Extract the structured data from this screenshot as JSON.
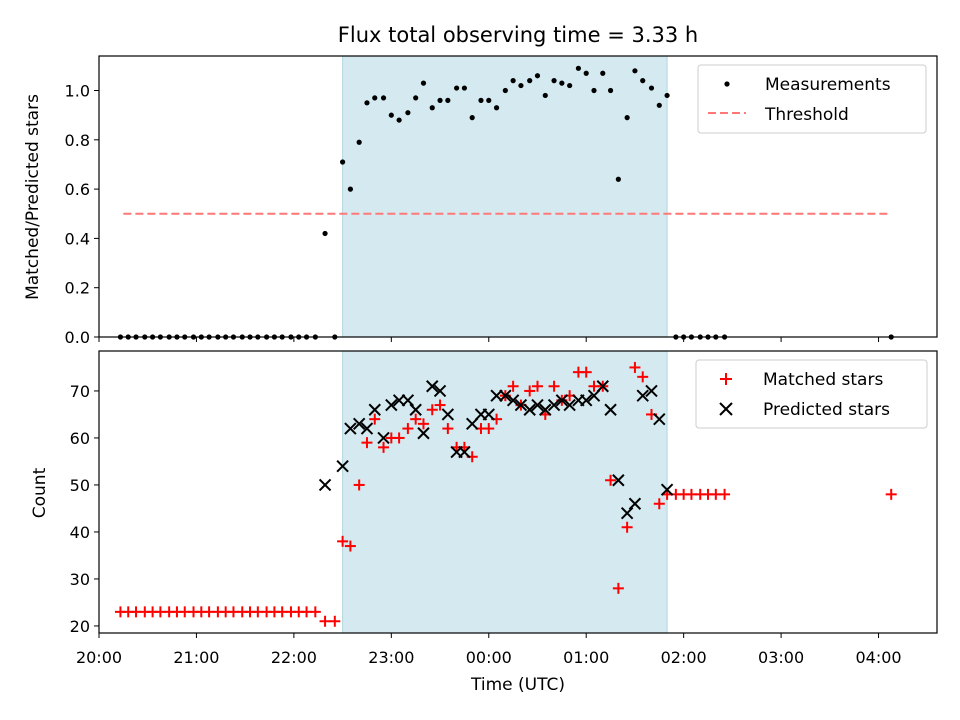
{
  "chart_data": [
    {
      "type": "scatter",
      "title": "Flux total observing time = 3.33 h",
      "ylabel": "Matched/Predicted stars",
      "xlabel": "",
      "xlim": [
        20.0,
        28.6
      ],
      "ylim": [
        0.0,
        1.14
      ],
      "yticks": [
        0.0,
        0.2,
        0.4,
        0.6,
        0.8,
        1.0
      ],
      "ytick_labels": [
        "0.0",
        "0.2",
        "0.4",
        "0.6",
        "0.8",
        "1.0"
      ],
      "x_unit": "hours from 20:00 UTC (values > 24 are after midnight)",
      "shaded_region": {
        "x0": 22.5,
        "x1": 25.83,
        "color": "#d4eaf0"
      },
      "threshold": {
        "value": 0.5,
        "x0": 20.25,
        "x1": 28.13,
        "color": "#ff7777",
        "name": "Threshold"
      },
      "legend_position": "upper right",
      "series": [
        {
          "name": "Measurements",
          "color": "#000000",
          "marker": "dot",
          "x": [
            20.22,
            20.3,
            20.38,
            20.47,
            20.55,
            20.63,
            20.72,
            20.8,
            20.88,
            20.97,
            21.05,
            21.13,
            21.22,
            21.3,
            21.38,
            21.47,
            21.55,
            21.63,
            21.72,
            21.8,
            21.88,
            21.97,
            22.05,
            22.13,
            22.22,
            22.32,
            22.42,
            22.5,
            22.58,
            22.67,
            22.75,
            22.83,
            22.92,
            23.0,
            23.08,
            23.17,
            23.25,
            23.33,
            23.42,
            23.5,
            23.58,
            23.67,
            23.75,
            23.83,
            23.92,
            24.0,
            24.08,
            24.17,
            24.25,
            24.33,
            24.42,
            24.5,
            24.58,
            24.67,
            24.75,
            24.83,
            24.92,
            25.0,
            25.08,
            25.17,
            25.25,
            25.33,
            25.42,
            25.5,
            25.58,
            25.67,
            25.75,
            25.83,
            25.92,
            26.0,
            26.08,
            26.17,
            26.25,
            26.33,
            26.42,
            28.13
          ],
          "y": [
            0,
            0,
            0,
            0,
            0,
            0,
            0,
            0,
            0,
            0,
            0,
            0,
            0,
            0,
            0,
            0,
            0,
            0,
            0,
            0,
            0,
            0,
            0,
            0,
            0,
            0.42,
            0,
            0.71,
            0.6,
            0.79,
            0.95,
            0.97,
            0.97,
            0.9,
            0.88,
            0.91,
            0.97,
            1.03,
            0.93,
            0.96,
            0.96,
            1.01,
            1.01,
            0.89,
            0.96,
            0.96,
            0.93,
            1.0,
            1.04,
            1.02,
            1.04,
            1.06,
            0.98,
            1.04,
            1.03,
            1.02,
            1.09,
            1.07,
            1.0,
            1.07,
            1.0,
            0.64,
            0.89,
            1.08,
            1.04,
            1.01,
            0.94,
            0.98,
            0,
            0,
            0,
            0,
            0,
            0,
            0,
            0
          ]
        }
      ]
    },
    {
      "type": "scatter",
      "title": "",
      "ylabel": "Count",
      "xlabel": "Time (UTC)",
      "xlim": [
        20.0,
        28.6
      ],
      "ylim": [
        18.5,
        78.5
      ],
      "yticks": [
        20,
        30,
        40,
        50,
        60,
        70
      ],
      "ytick_labels": [
        "20",
        "30",
        "40",
        "50",
        "60",
        "70"
      ],
      "xticks": [
        20,
        21,
        22,
        23,
        24,
        25,
        26,
        27,
        28
      ],
      "xtick_labels": [
        "20:00",
        "21:00",
        "22:00",
        "23:00",
        "00:00",
        "01:00",
        "02:00",
        "03:00",
        "04:00"
      ],
      "shaded_region": {
        "x0": 22.5,
        "x1": 25.83,
        "color": "#d4eaf0"
      },
      "legend_position": "upper right",
      "series": [
        {
          "name": "Matched stars",
          "color": "#ff0000",
          "marker": "plus",
          "x": [
            20.22,
            20.3,
            20.38,
            20.47,
            20.55,
            20.63,
            20.72,
            20.8,
            20.88,
            20.97,
            21.05,
            21.13,
            21.22,
            21.3,
            21.38,
            21.47,
            21.55,
            21.63,
            21.72,
            21.8,
            21.88,
            21.97,
            22.05,
            22.13,
            22.22,
            22.32,
            22.42,
            22.5,
            22.58,
            22.67,
            22.75,
            22.83,
            22.92,
            23.0,
            23.08,
            23.17,
            23.25,
            23.33,
            23.42,
            23.5,
            23.58,
            23.67,
            23.75,
            23.83,
            23.92,
            24.0,
            24.08,
            24.17,
            24.25,
            24.33,
            24.42,
            24.5,
            24.58,
            24.67,
            24.75,
            24.83,
            24.92,
            25.0,
            25.08,
            25.17,
            25.25,
            25.33,
            25.42,
            25.5,
            25.58,
            25.67,
            25.75,
            25.83,
            25.92,
            26.0,
            26.08,
            26.17,
            26.25,
            26.33,
            26.42,
            28.13
          ],
          "y": [
            23,
            23,
            23,
            23,
            23,
            23,
            23,
            23,
            23,
            23,
            23,
            23,
            23,
            23,
            23,
            23,
            23,
            23,
            23,
            23,
            23,
            23,
            23,
            23,
            23,
            21,
            21,
            38,
            37,
            50,
            59,
            64,
            58,
            60,
            60,
            62,
            64,
            63,
            66,
            67,
            62,
            58,
            58,
            56,
            62,
            62,
            64,
            69,
            71,
            67,
            70,
            71,
            65,
            71,
            68,
            69,
            74,
            74,
            71,
            71,
            51,
            28,
            41,
            75,
            73,
            65,
            46,
            48,
            48,
            48,
            48,
            48,
            48,
            48,
            48,
            48
          ]
        },
        {
          "name": "Predicted stars",
          "color": "#000000",
          "marker": "x",
          "x": [
            22.32,
            22.5,
            22.58,
            22.67,
            22.75,
            22.83,
            22.92,
            23.0,
            23.08,
            23.17,
            23.25,
            23.33,
            23.42,
            23.5,
            23.58,
            23.67,
            23.75,
            23.83,
            23.92,
            24.0,
            24.08,
            24.17,
            24.25,
            24.33,
            24.42,
            24.5,
            24.58,
            24.67,
            24.75,
            24.83,
            24.92,
            25.0,
            25.08,
            25.17,
            25.25,
            25.33,
            25.42,
            25.5,
            25.58,
            25.67,
            25.75,
            25.83
          ],
          "y": [
            50,
            54,
            62,
            63,
            62,
            66,
            60,
            67,
            68,
            68,
            66,
            61,
            71,
            70,
            65,
            57,
            57,
            63,
            65,
            65,
            69,
            69,
            68,
            67,
            66,
            67,
            66,
            67,
            68,
            67,
            68,
            68,
            69,
            71,
            66,
            51,
            44,
            46,
            69,
            70,
            64,
            49
          ]
        }
      ]
    }
  ]
}
